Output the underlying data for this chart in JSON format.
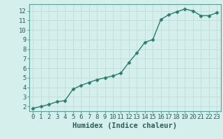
{
  "x": [
    0,
    1,
    2,
    3,
    4,
    5,
    6,
    7,
    8,
    9,
    10,
    11,
    12,
    13,
    14,
    15,
    16,
    17,
    18,
    19,
    20,
    21,
    22,
    23
  ],
  "y": [
    1.8,
    2.0,
    2.2,
    2.5,
    2.6,
    3.8,
    4.2,
    4.5,
    4.8,
    5.0,
    5.2,
    5.5,
    6.6,
    7.6,
    8.7,
    9.0,
    11.1,
    11.6,
    11.9,
    12.2,
    12.0,
    11.5,
    11.5,
    11.8
  ],
  "xlim": [
    -0.5,
    23.5
  ],
  "ylim": [
    1.5,
    12.7
  ],
  "yticks": [
    2,
    3,
    4,
    5,
    6,
    7,
    8,
    9,
    10,
    11,
    12
  ],
  "xticks": [
    0,
    1,
    2,
    3,
    4,
    5,
    6,
    7,
    8,
    9,
    10,
    11,
    12,
    13,
    14,
    15,
    16,
    17,
    18,
    19,
    20,
    21,
    22,
    23
  ],
  "xlabel": "Humidex (Indice chaleur)",
  "line_color": "#2e7d6e",
  "marker": "D",
  "marker_size": 2.5,
  "bg_color": "#d4efec",
  "grid_color": "#c0ddd9",
  "tick_label_fontsize": 6.5,
  "xlabel_fontsize": 7.5,
  "line_width": 1.0,
  "spine_color": "#5a9e94"
}
